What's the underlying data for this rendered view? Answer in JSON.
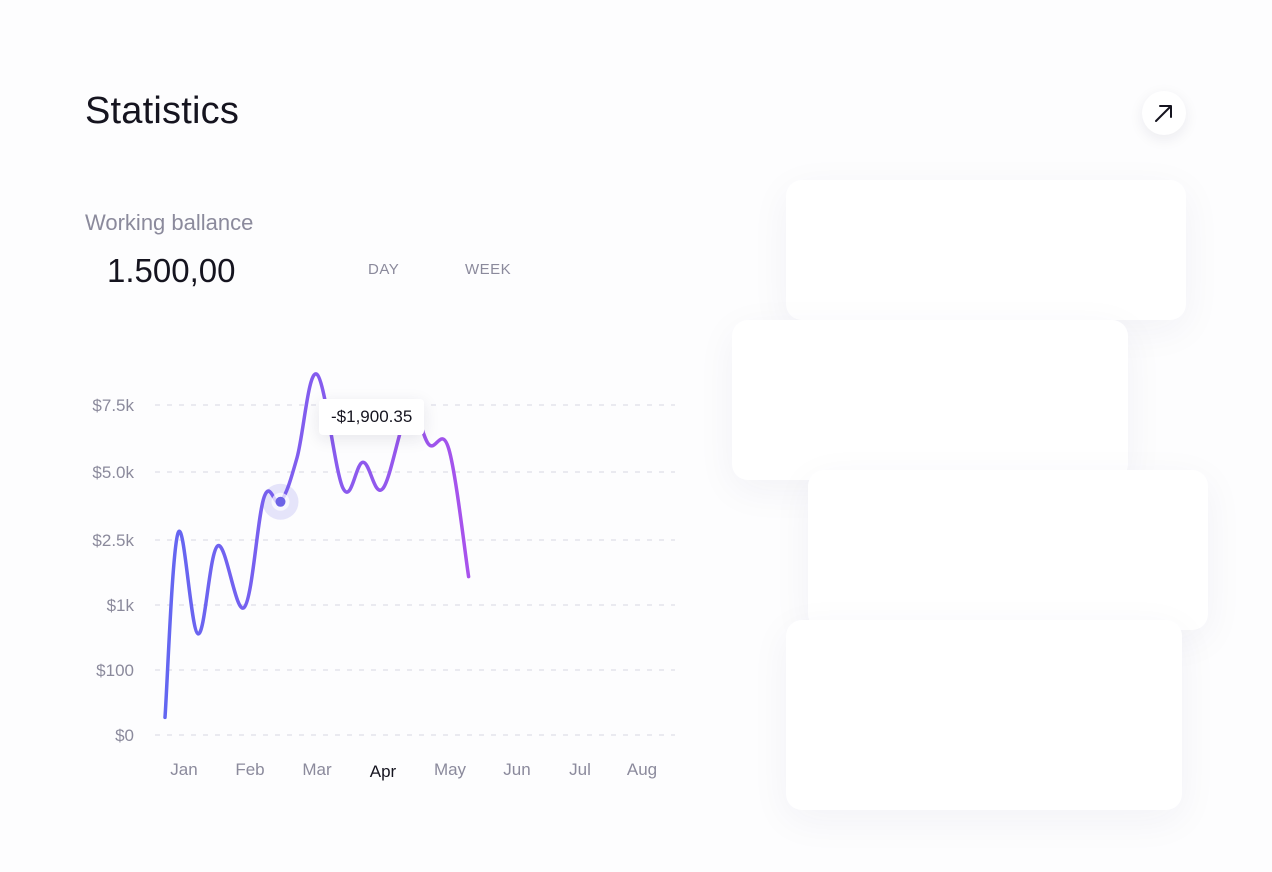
{
  "header": {
    "title": "Statistics"
  },
  "balance": {
    "label": "Working ballance",
    "value": "1.500,00"
  },
  "tabs": {
    "day": "DAY",
    "week": "WEEK"
  },
  "tooltip": {
    "value": "-$1,900.35"
  },
  "colors": {
    "line_start": "#6366f1",
    "line_mid": "#9d55ec",
    "line_end": "#d946ef",
    "marker": "#6c63e6",
    "grid": "#e3e3ec",
    "text_muted": "#8b8a9c"
  },
  "icons": {
    "expand": "arrow-up-right-icon"
  },
  "chart_data": {
    "type": "line",
    "categories": [
      "Jan",
      "Feb",
      "Mar",
      "Apr",
      "May",
      "Jun",
      "Jul",
      "Aug"
    ],
    "active_category": "Apr",
    "y_tick_labels": [
      "$0",
      "$100",
      "$1k",
      "$2.5k",
      "$5.0k",
      "$7.5k"
    ],
    "points": [
      [
        0.0,
        0.4
      ],
      [
        0.2,
        4.6
      ],
      [
        0.5,
        2.3
      ],
      [
        0.8,
        4.3
      ],
      [
        1.2,
        2.9
      ],
      [
        1.5,
        5.4
      ],
      [
        1.75,
        5.3
      ],
      [
        2.0,
        6.3
      ],
      [
        2.3,
        8.2
      ],
      [
        2.7,
        5.6
      ],
      [
        3.0,
        6.2
      ],
      [
        3.3,
        5.6
      ],
      [
        3.7,
        7.4
      ],
      [
        4.0,
        6.6
      ],
      [
        4.3,
        6.5
      ],
      [
        4.6,
        3.6
      ]
    ],
    "highlight": {
      "x": 1.75,
      "y": 5.3
    },
    "grid": true
  }
}
